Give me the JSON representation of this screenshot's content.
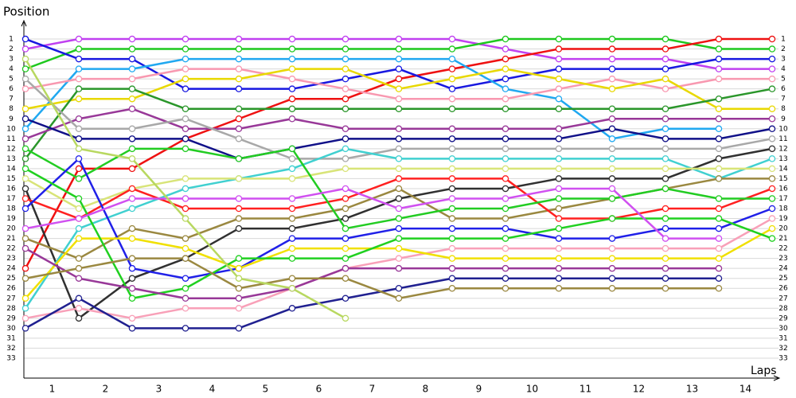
{
  "chart_data": {
    "type": "line",
    "y_axis_label": "Position",
    "x_axis_label": "Laps",
    "x": [
      0,
      1,
      2,
      3,
      4,
      5,
      6,
      7,
      8,
      9,
      10,
      11,
      12,
      13,
      14
    ],
    "xlim": [
      0,
      14
    ],
    "xticks": [
      {
        "value": 0.5,
        "label": "1"
      },
      {
        "value": 1.5,
        "label": "2"
      },
      {
        "value": 2.5,
        "label": "3"
      },
      {
        "value": 3.5,
        "label": "4"
      },
      {
        "value": 4.5,
        "label": "5"
      },
      {
        "value": 5.5,
        "label": "6"
      },
      {
        "value": 6.5,
        "label": "7"
      },
      {
        "value": 7.5,
        "label": "8"
      },
      {
        "value": 8.5,
        "label": "9"
      },
      {
        "value": 9.5,
        "label": "10"
      },
      {
        "value": 10.5,
        "label": "11"
      },
      {
        "value": 11.5,
        "label": "12"
      },
      {
        "value": 12.5,
        "label": "13"
      },
      {
        "value": 13.5,
        "label": "14"
      }
    ],
    "ylim": [
      35,
      0
    ],
    "yticks": [
      1,
      2,
      3,
      4,
      5,
      6,
      7,
      8,
      9,
      10,
      11,
      12,
      13,
      14,
      15,
      16,
      17,
      18,
      19,
      20,
      21,
      22,
      23,
      24,
      25,
      26,
      27,
      28,
      29,
      30,
      31,
      32,
      33
    ],
    "grid": true,
    "series": [
      {
        "color": "#c040f0",
        "values": [
          2,
          1,
          1,
          1,
          1,
          1,
          1,
          1,
          1,
          2,
          3,
          3,
          3,
          4,
          4
        ]
      },
      {
        "color": "#1ec81e",
        "values": [
          4,
          2,
          2,
          2,
          2,
          2,
          2,
          2,
          2,
          1,
          1,
          1,
          1,
          2,
          2
        ]
      },
      {
        "color": "#ee1111",
        "values": [
          24,
          14,
          14,
          11,
          9,
          7,
          7,
          5,
          4,
          3,
          2,
          2,
          2,
          1,
          1
        ]
      },
      {
        "color": "#1818e0",
        "values": [
          1,
          3,
          3,
          6,
          6,
          6,
          5,
          4,
          6,
          5,
          4,
          4,
          4,
          3,
          3
        ]
      },
      {
        "color": "#20a8f0",
        "values": [
          10,
          4,
          4,
          3,
          3,
          3,
          3,
          3,
          3,
          6,
          7,
          11,
          10,
          10,
          null
        ]
      },
      {
        "color": "#f898b0",
        "values": [
          6,
          5,
          5,
          4,
          4,
          5,
          6,
          7,
          7,
          7,
          6,
          5,
          6,
          5,
          5
        ]
      },
      {
        "color": "#e8d800",
        "values": [
          8,
          7,
          7,
          5,
          5,
          4,
          4,
          6,
          5,
          4,
          5,
          6,
          5,
          8,
          8
        ]
      },
      {
        "color": "#2a962a",
        "values": [
          13,
          6,
          6,
          8,
          8,
          8,
          8,
          8,
          8,
          8,
          8,
          8,
          8,
          7,
          6
        ]
      },
      {
        "color": "#983898",
        "values": [
          11,
          9,
          8,
          10,
          10,
          9,
          10,
          10,
          10,
          10,
          10,
          9,
          9,
          9,
          9
        ]
      },
      {
        "color": "#101088",
        "values": [
          9,
          11,
          11,
          11,
          13,
          12,
          11,
          11,
          11,
          11,
          11,
          10,
          11,
          11,
          10
        ]
      },
      {
        "color": "#a8a8a8",
        "values": [
          5,
          10,
          10,
          9,
          11,
          13,
          13,
          12,
          12,
          12,
          12,
          12,
          12,
          12,
          11
        ]
      },
      {
        "color": "#303030",
        "values": [
          16,
          29,
          25,
          23,
          20,
          20,
          19,
          17,
          16,
          16,
          15,
          15,
          15,
          13,
          12
        ]
      },
      {
        "color": "#40d0d0",
        "values": [
          28,
          20,
          18,
          16,
          15,
          14,
          12,
          13,
          13,
          13,
          13,
          13,
          13,
          15,
          13
        ]
      },
      {
        "color": "#d8e478",
        "values": [
          15,
          18,
          16,
          15,
          15,
          15,
          14,
          14,
          14,
          14,
          14,
          14,
          14,
          14,
          14
        ]
      },
      {
        "color": "#9a8840",
        "values": [
          21,
          23,
          20,
          21,
          19,
          19,
          18,
          16,
          19,
          19,
          18,
          17,
          16,
          15,
          15
        ]
      },
      {
        "color": "#ff2020",
        "values": [
          17,
          19,
          16,
          18,
          18,
          18,
          17,
          15,
          15,
          15,
          19,
          19,
          18,
          18,
          16
        ]
      },
      {
        "color": "#22cc22",
        "values": [
          12,
          15,
          12,
          12,
          13,
          12,
          20,
          19,
          18,
          18,
          17,
          17,
          16,
          17,
          17
        ]
      },
      {
        "color": "#2020e8",
        "values": [
          18,
          13,
          24,
          25,
          24,
          21,
          21,
          20,
          20,
          20,
          21,
          21,
          20,
          20,
          18
        ]
      },
      {
        "color": "#f8a0b8",
        "values": [
          29,
          28,
          29,
          28,
          28,
          26,
          24,
          23,
          22,
          22,
          22,
          22,
          22,
          22,
          19
        ]
      },
      {
        "color": "#f0e000",
        "values": [
          27,
          21,
          21,
          22,
          24,
          22,
          22,
          22,
          23,
          23,
          23,
          23,
          23,
          23,
          20
        ]
      },
      {
        "color": "#20d020",
        "values": [
          14,
          17,
          27,
          26,
          23,
          23,
          23,
          21,
          21,
          21,
          20,
          19,
          19,
          19,
          21
        ]
      },
      {
        "color": "#d050f0",
        "values": [
          20,
          19,
          17,
          17,
          17,
          17,
          16,
          18,
          17,
          17,
          16,
          16,
          21,
          21,
          null
        ]
      },
      {
        "color": "#983898",
        "values": [
          22,
          25,
          26,
          27,
          27,
          26,
          24,
          24,
          24,
          24,
          24,
          24,
          24,
          24,
          null
        ]
      },
      {
        "color": "#202090",
        "values": [
          30,
          27,
          30,
          30,
          30,
          28,
          27,
          26,
          25,
          25,
          25,
          25,
          25,
          25,
          null
        ]
      },
      {
        "color": "#9a8840",
        "values": [
          25,
          24,
          23,
          23,
          26,
          25,
          25,
          27,
          26,
          26,
          26,
          26,
          26,
          26,
          null
        ]
      },
      {
        "color": "#b8d860",
        "values": [
          3,
          12,
          13,
          19,
          25,
          26,
          29,
          null,
          null,
          null,
          null,
          null,
          null,
          null,
          null
        ]
      }
    ]
  }
}
